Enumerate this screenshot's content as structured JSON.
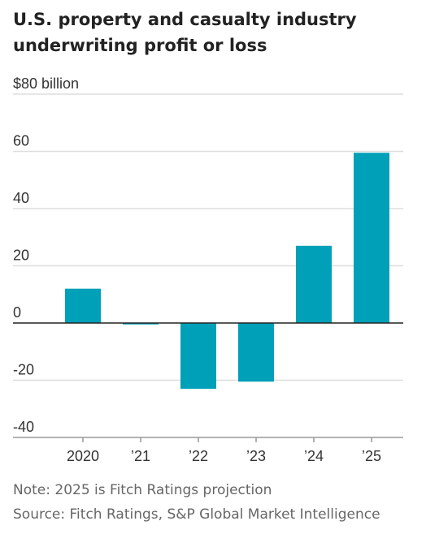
{
  "title": "U.S. property and casualty industry underwriting profit or loss",
  "note": "Note: 2025 is Fitch Ratings projection",
  "source": "Source: Fitch Ratings, S&P Global Market Intelligence",
  "chart_data": {
    "type": "bar",
    "title": "U.S. property and casualty industry underwriting profit or loss",
    "categories": [
      "2020",
      "’21",
      "’22",
      "’23",
      "’24",
      "’25"
    ],
    "values": [
      12,
      -0.5,
      -23,
      -20.5,
      27,
      59.5
    ],
    "ylim": [
      -40,
      80
    ],
    "yticks": [
      -40,
      -20,
      0,
      20,
      40,
      60,
      80
    ],
    "ytick_labels": [
      "-40",
      "-20",
      "0",
      "20",
      "40",
      "60",
      "$80 billion"
    ],
    "grid": true,
    "bar_color": "#00a0b8",
    "grid_color": "#dddddd",
    "zero_line_color": "#222222"
  }
}
